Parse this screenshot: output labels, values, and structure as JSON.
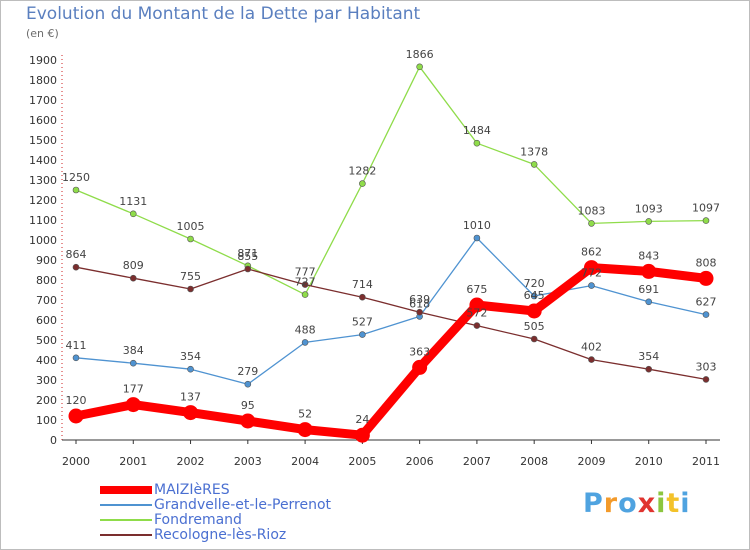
{
  "title": "Evolution du Montant de la Dette par Habitant",
  "unit": "(en €)",
  "logo": "Proxiti",
  "chart_data": {
    "type": "line",
    "title": "Evolution du Montant de la Dette par Habitant",
    "ylabel": "(en €)",
    "x": [
      "2000",
      "2001",
      "2002",
      "2003",
      "2004",
      "2005",
      "2006",
      "2007",
      "2008",
      "2009",
      "2010",
      "2011"
    ],
    "ylim": [
      0,
      1900
    ],
    "yticks": [
      0,
      100,
      200,
      300,
      400,
      500,
      600,
      700,
      800,
      900,
      1000,
      1100,
      1200,
      1300,
      1400,
      1500,
      1600,
      1700,
      1800,
      1900
    ],
    "grid": false,
    "legend": "bottom-left",
    "series": [
      {
        "name": "MAIZIèRES",
        "color": "#ff0000",
        "values": [
          120,
          177,
          137,
          95,
          52,
          24,
          363,
          675,
          645,
          862,
          843,
          808
        ]
      },
      {
        "name": "Grandvelle-et-le-Perrenot",
        "color": "#4f93d1",
        "values": [
          411,
          384,
          354,
          279,
          488,
          527,
          618,
          1010,
          720,
          772,
          691,
          627
        ]
      },
      {
        "name": "Fondremand",
        "color": "#8fdc4a",
        "values": [
          1250,
          1131,
          1005,
          871,
          727,
          1282,
          1866,
          1484,
          1378,
          1083,
          1093,
          1097
        ]
      },
      {
        "name": "Recologne-lès-Rioz",
        "color": "#7b2e2e",
        "values": [
          864,
          809,
          755,
          855,
          777,
          714,
          639,
          572,
          505,
          402,
          354,
          303
        ]
      }
    ]
  }
}
